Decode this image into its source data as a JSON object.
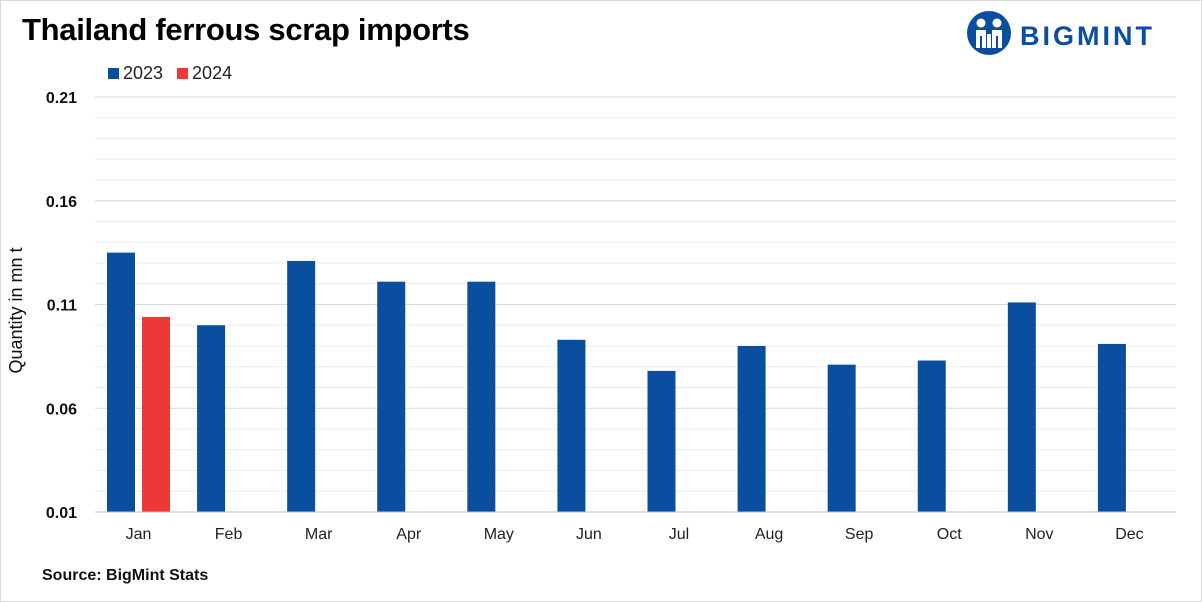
{
  "header": {
    "title": "Thailand ferrous scrap imports",
    "logo_text": "BIGMINT"
  },
  "footer": {
    "source": "Source: BigMint Stats"
  },
  "colors": {
    "series_2023": "#0a4ea0",
    "series_2024": "#ec3836",
    "grid_major": "#d9d9d9",
    "grid_minor": "#ececec"
  },
  "chart_data": {
    "type": "bar",
    "title": "Thailand ferrous scrap imports",
    "xlabel": "",
    "ylabel": "Quantity in mn t",
    "ylim": [
      0.01,
      0.21
    ],
    "yticks": [
      "0.01",
      "0.06",
      "0.11",
      "0.16",
      "0.21"
    ],
    "grid": true,
    "legend_position": "top-left",
    "categories": [
      "Jan",
      "Feb",
      "Mar",
      "Apr",
      "May",
      "Jun",
      "Jul",
      "Aug",
      "Sep",
      "Oct",
      "Nov",
      "Dec"
    ],
    "series": [
      {
        "name": "2023",
        "color": "#0a4ea0",
        "values": [
          0.135,
          0.1,
          0.131,
          0.121,
          0.121,
          0.093,
          0.078,
          0.09,
          0.081,
          0.083,
          0.111,
          0.091
        ]
      },
      {
        "name": "2024",
        "color": "#ec3836",
        "values": [
          0.104,
          null,
          null,
          null,
          null,
          null,
          null,
          null,
          null,
          null,
          null,
          null
        ]
      }
    ]
  }
}
